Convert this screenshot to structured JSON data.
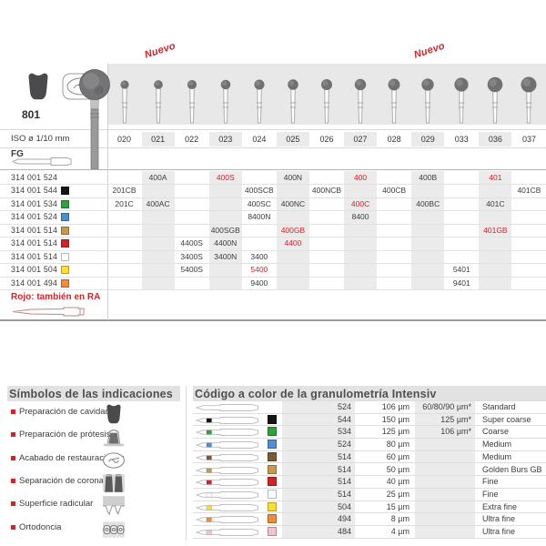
{
  "catalog": {
    "figure_number": "801",
    "new_badge": "Nuevo",
    "new_badge_columns": [
      "021",
      "029"
    ],
    "iso_label": "ISO ø 1/10 mm",
    "shank_label": "FG",
    "note_red": "Rojo: también en RA",
    "columns": [
      "020",
      "021",
      "022",
      "023",
      "024",
      "025",
      "026",
      "027",
      "028",
      "029",
      "033",
      "036",
      "037"
    ],
    "rows": [
      {
        "code": "314 001 524",
        "color": null,
        "cells": [
          {
            "col": "021",
            "t": "400A"
          },
          {
            "col": "023",
            "t": "400S",
            "red": true
          },
          {
            "col": "025",
            "t": "400N"
          },
          {
            "col": "027",
            "t": "400",
            "red": true
          },
          {
            "col": "029",
            "t": "400B"
          },
          {
            "col": "036",
            "t": "401",
            "red": true
          }
        ]
      },
      {
        "code": "314 001 544",
        "color": "black",
        "cells": [
          {
            "col": "020",
            "t": "201CB"
          },
          {
            "col": "024",
            "t": "400SCB"
          },
          {
            "col": "026",
            "t": "400NCB"
          },
          {
            "col": "028",
            "t": "400CB"
          },
          {
            "col": "037",
            "t": "401CB"
          }
        ]
      },
      {
        "code": "314 001 534",
        "color": "green",
        "cells": [
          {
            "col": "020",
            "t": "201C"
          },
          {
            "col": "021",
            "t": "400AC"
          },
          {
            "col": "024",
            "t": "400SC"
          },
          {
            "col": "025",
            "t": "400NC"
          },
          {
            "col": "027",
            "t": "400C",
            "red": true
          },
          {
            "col": "029",
            "t": "400BC"
          },
          {
            "col": "036",
            "t": "401C"
          }
        ]
      },
      {
        "code": "314 001 524",
        "color": "blue",
        "cells": [
          {
            "col": "024",
            "t": "8400N"
          },
          {
            "col": "027",
            "t": "8400"
          }
        ]
      },
      {
        "code": "314 001 514",
        "color": "gold",
        "cells": [
          {
            "col": "023",
            "t": "400SGB"
          },
          {
            "col": "025",
            "t": "400GB",
            "red": true
          },
          {
            "col": "036",
            "t": "401GB",
            "red": true
          }
        ]
      },
      {
        "code": "314 001 514",
        "color": "red",
        "cells": [
          {
            "col": "022",
            "t": "4400S"
          },
          {
            "col": "023",
            "t": "4400N"
          },
          {
            "col": "025",
            "t": "4400",
            "red": true
          }
        ]
      },
      {
        "code": "314 001 514",
        "color": "white",
        "cells": [
          {
            "col": "022",
            "t": "3400S"
          },
          {
            "col": "023",
            "t": "3400N"
          },
          {
            "col": "024",
            "t": "3400"
          }
        ]
      },
      {
        "code": "314 001 504",
        "color": "yellow",
        "cells": [
          {
            "col": "022",
            "t": "5400S"
          },
          {
            "col": "024",
            "t": "5400",
            "red": true
          },
          {
            "col": "033",
            "t": "5401"
          }
        ]
      },
      {
        "code": "314 001 494",
        "color": "orange",
        "cells": [
          {
            "col": "024",
            "t": "9400"
          },
          {
            "col": "033",
            "t": "9401"
          }
        ]
      }
    ]
  },
  "indications": {
    "title": "Símbolos de las indicaciones",
    "items": [
      {
        "label": "Preparación de cavidades",
        "icon": "cavity-prep"
      },
      {
        "label": "Preparación de prótesis",
        "icon": "prosthesis-prep"
      },
      {
        "label": "Acabado de restauraciones",
        "icon": "restoration-finishing"
      },
      {
        "label": "Separación de coronas",
        "icon": "crown-separation"
      },
      {
        "label": "Superficie radicular",
        "icon": "root-surface"
      },
      {
        "label": "Ortodoncia",
        "icon": "orthodontics"
      }
    ]
  },
  "grain_table": {
    "title": "Código a color de la granulometría Intensiv",
    "rows": [
      {
        "color": null,
        "code": "524",
        "size": "106 µm",
        "alt": "60/80/90 µm*",
        "name": "Standard"
      },
      {
        "color": "black",
        "code": "544",
        "size": "150 µm",
        "alt": "125 µm*",
        "name": "Super coarse"
      },
      {
        "color": "green",
        "code": "534",
        "size": "125 µm",
        "alt": "106 µm*",
        "name": "Coarse"
      },
      {
        "color": "blue",
        "code": "524",
        "size": "80 µm",
        "alt": "",
        "name": "Medium"
      },
      {
        "color": "brown",
        "code": "514",
        "size": "60 µm",
        "alt": "",
        "name": "Medium"
      },
      {
        "color": "gold",
        "code": "514",
        "size": "50 µm",
        "alt": "",
        "name": "Golden Burs GB"
      },
      {
        "color": "red",
        "code": "514",
        "size": "40 µm",
        "alt": "",
        "name": "Fine"
      },
      {
        "color": "white",
        "code": "514",
        "size": "25 µm",
        "alt": "",
        "name": "Fine"
      },
      {
        "color": "yellow",
        "code": "504",
        "size": "15 µm",
        "alt": "",
        "name": "Extra fine"
      },
      {
        "color": "orange",
        "code": "494",
        "size": "8 µm",
        "alt": "",
        "name": "Ultra fine"
      },
      {
        "color": "pink",
        "code": "484",
        "size": "4 µm",
        "alt": "",
        "name": "Ultra fine"
      }
    ]
  },
  "colors": {
    "accent_red": "#d2232a",
    "black": "#141414",
    "green": "#2ea13a",
    "blue": "#4d8fd1",
    "gold": "#c59a4d",
    "brown": "#7d5a36",
    "red": "#d2232a",
    "white": "#ffffff",
    "yellow": "#ffdf2b",
    "orange": "#ef8b3a",
    "pink": "#f2c4ce",
    "band": "#ebebeb",
    "strip": "#e8e8e8"
  }
}
